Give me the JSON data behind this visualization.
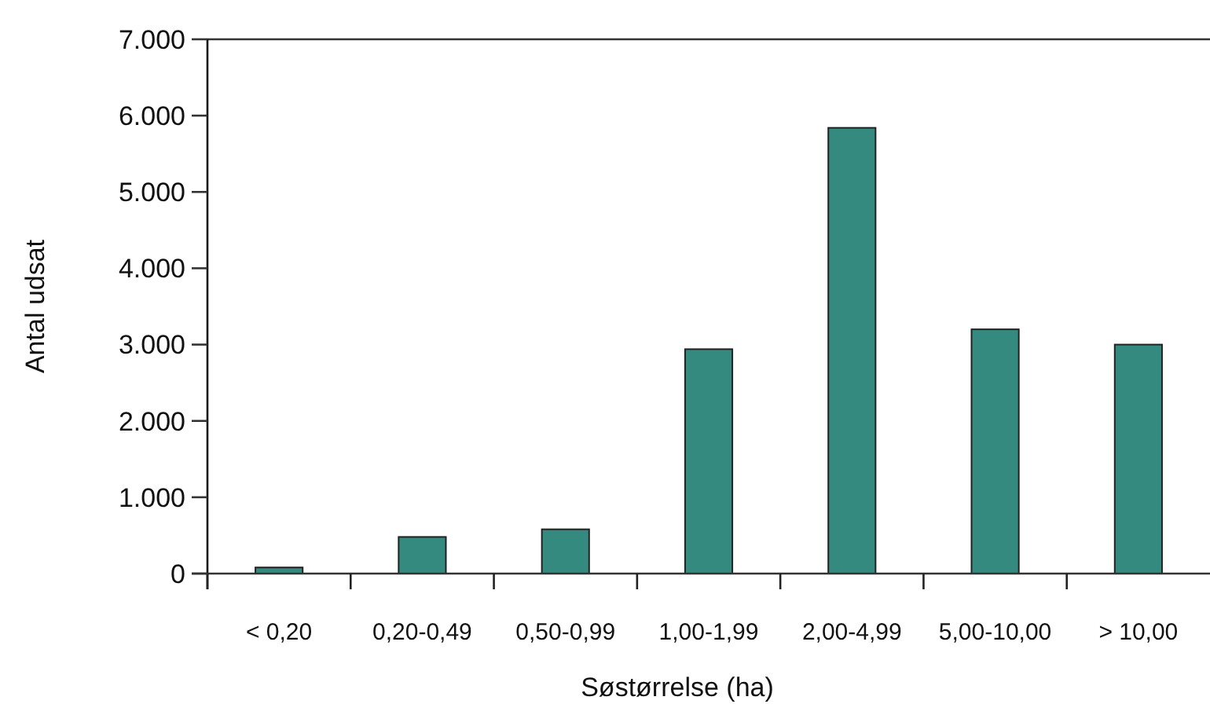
{
  "chart_data": {
    "type": "bar",
    "xlabel": "Søstørrelse (ha)",
    "ylabel": "Antal udsat",
    "categories": [
      "< 0,20",
      "0,20-0,49",
      "0,50-0,99",
      "1,00-1,99",
      "2,00-4,99",
      "5,00-10,00",
      "> 10,00"
    ],
    "values": [
      80,
      480,
      580,
      2940,
      5840,
      3200,
      3000
    ],
    "color": "#358a80",
    "ylim": [
      0,
      7000
    ],
    "yticks": [
      {
        "value": 0,
        "label": "0"
      },
      {
        "value": 1000,
        "label": "1.000"
      },
      {
        "value": 2000,
        "label": "2.000"
      },
      {
        "value": 3000,
        "label": "3.000"
      },
      {
        "value": 4000,
        "label": "4.000"
      },
      {
        "value": 5000,
        "label": "5.000"
      },
      {
        "value": 6000,
        "label": "6.000"
      },
      {
        "value": 7000,
        "label": "7.000"
      }
    ],
    "grid": false
  }
}
